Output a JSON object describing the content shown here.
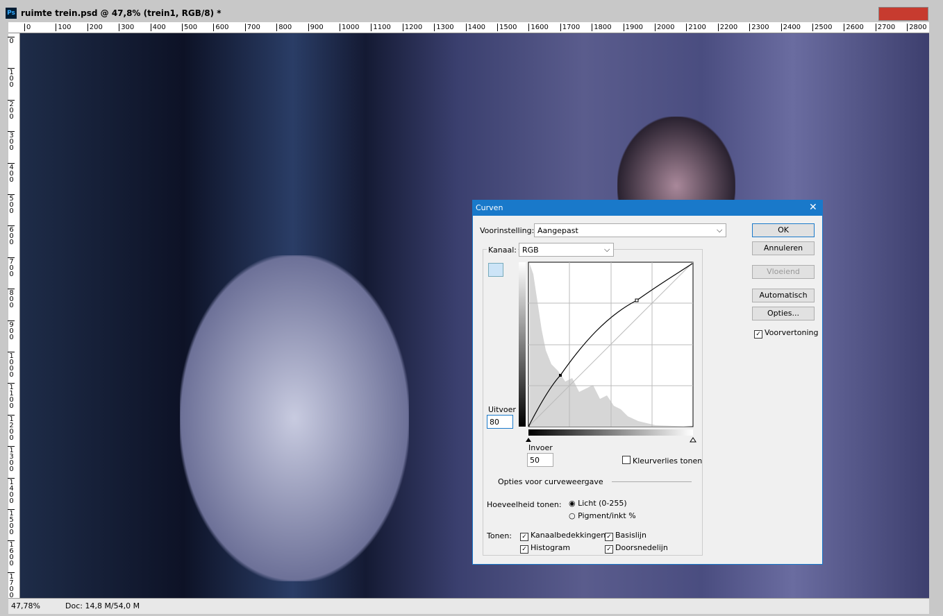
{
  "window": {
    "title": "ruimte trein.psd @ 47,8% (trein1, RGB/8) *"
  },
  "ruler": {
    "horizontal": [
      0,
      100,
      200,
      300,
      400,
      500,
      600,
      700,
      800,
      900,
      1000,
      1100,
      1200,
      1300,
      1400,
      1500,
      1600,
      1700,
      1800,
      1900,
      2000,
      2100,
      2200,
      2300,
      2400,
      2500,
      2600,
      2700,
      2800
    ],
    "vertical": [
      0,
      100,
      200,
      300,
      400,
      500,
      600,
      700,
      800,
      900,
      1000,
      1100,
      1200,
      1300,
      1400,
      1500,
      1600,
      1700
    ]
  },
  "status": {
    "zoom": "47,78%",
    "doc": "Doc: 14,8 M/54,0 M"
  },
  "dialog": {
    "title": "Curven",
    "preset_label": "Voorinstelling:",
    "preset_value": "Aangepast",
    "channel_label": "Kanaal:",
    "channel_value": "RGB",
    "buttons": [
      "OK",
      "Annuleren",
      "Vloeiend",
      "Automatisch",
      "Opties..."
    ],
    "preview": "Voorvertoning",
    "output_label": "Uitvoer",
    "output_value": "80",
    "input_label": "Invoer",
    "input_value": "50",
    "clipping": "Kleurverlies tonen",
    "display_options": "Opties voor curveweergave",
    "amount_label": "Hoeveelheid tonen:",
    "light": "Licht (0-255)",
    "pigment": "Pigment/inkt %",
    "show_label": "Tonen:",
    "show_options": [
      "Kanaalbedekkingen",
      "Basislijn",
      "Histogram",
      "Doorsnedelijn"
    ]
  }
}
